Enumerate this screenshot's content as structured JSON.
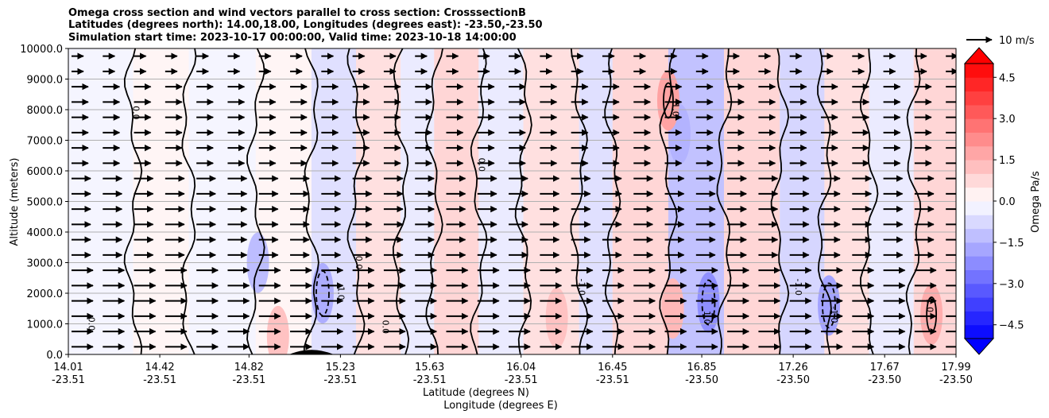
{
  "chart_data": {
    "type": "heatmap",
    "title_lines": [
      "Omega cross section and wind vectors parallel to cross section: CrosssectionB",
      "Latitudes (degrees north): 14.00,18.00, Longitudes (degrees east): -23.50,-23.50",
      "Simulation start time: 2023-10-17 00:00:00, Valid time: 2023-10-18 14:00:00"
    ],
    "ylabel": "Altitude (meters)",
    "xlabel_lines": [
      "Latitude (degrees N)",
      "Longitude (degrees E)"
    ],
    "y_ticks": [
      "0.0",
      "1000.0",
      "2000.0",
      "3000.0",
      "4000.0",
      "5000.0",
      "6000.0",
      "7000.0",
      "8000.0",
      "9000.0",
      "10000.0"
    ],
    "ylim": [
      0,
      10000
    ],
    "grid": "horizontal",
    "x_ticks": [
      {
        "lat": "14.01",
        "lon": "-23.51"
      },
      {
        "lat": "14.42",
        "lon": "-23.51"
      },
      {
        "lat": "14.82",
        "lon": "-23.51"
      },
      {
        "lat": "15.23",
        "lon": "-23.51"
      },
      {
        "lat": "15.63",
        "lon": "-23.51"
      },
      {
        "lat": "16.04",
        "lon": "-23.51"
      },
      {
        "lat": "16.45",
        "lon": "-23.51"
      },
      {
        "lat": "16.85",
        "lon": "-23.50"
      },
      {
        "lat": "17.26",
        "lon": "-23.50"
      },
      {
        "lat": "17.67",
        "lon": "-23.50"
      },
      {
        "lat": "17.99",
        "lon": "-23.50"
      }
    ],
    "xlim": [
      14.01,
      17.99
    ],
    "colorbar": {
      "label": "Omega Pa/s",
      "ticks": [
        "4.5",
        "3.0",
        "1.5",
        "0.0",
        "−1.5",
        "−3.0",
        "−4.5"
      ],
      "range": [
        -5,
        5
      ],
      "cmap": "bwr"
    },
    "quiver_key": {
      "label": "10 m/s",
      "speed": 10
    },
    "contour_labels": [
      "0.0",
      "1.0",
      "-1.0"
    ],
    "omega_bands": [
      {
        "lat_from": 14.01,
        "lat_to": 14.3,
        "value": -0.2
      },
      {
        "lat_from": 14.3,
        "lat_to": 14.55,
        "value": 0.2
      },
      {
        "lat_from": 14.55,
        "lat_to": 14.85,
        "value": -0.2
      },
      {
        "lat_from": 14.85,
        "lat_to": 15.1,
        "value": 0.2
      },
      {
        "lat_from": 15.1,
        "lat_to": 15.3,
        "value": -0.6
      },
      {
        "lat_from": 15.3,
        "lat_to": 15.5,
        "value": 0.6
      },
      {
        "lat_from": 15.5,
        "lat_to": 15.65,
        "value": -0.4
      },
      {
        "lat_from": 15.65,
        "lat_to": 15.85,
        "value": 0.8
      },
      {
        "lat_from": 15.85,
        "lat_to": 16.05,
        "value": -0.4
      },
      {
        "lat_from": 16.05,
        "lat_to": 16.3,
        "value": 0.6
      },
      {
        "lat_from": 16.3,
        "lat_to": 16.45,
        "value": -0.6
      },
      {
        "lat_from": 16.45,
        "lat_to": 16.7,
        "value": 0.8
      },
      {
        "lat_from": 16.7,
        "lat_to": 16.95,
        "value": -1.2
      },
      {
        "lat_from": 16.95,
        "lat_to": 17.2,
        "value": 0.8
      },
      {
        "lat_from": 17.2,
        "lat_to": 17.4,
        "value": -0.8
      },
      {
        "lat_from": 17.4,
        "lat_to": 17.6,
        "value": 0.6
      },
      {
        "lat_from": 17.6,
        "lat_to": 17.8,
        "value": -0.4
      },
      {
        "lat_from": 17.8,
        "lat_to": 17.99,
        "value": 0.8
      }
    ],
    "omega_blobs": [
      {
        "lat": 16.88,
        "alt": 1700,
        "value": -2.2
      },
      {
        "lat": 17.42,
        "alt": 1600,
        "value": -1.8
      },
      {
        "lat": 15.15,
        "alt": 2000,
        "value": -1.6
      },
      {
        "lat": 14.86,
        "alt": 3000,
        "value": -1.3
      },
      {
        "lat": 16.75,
        "alt": 7200,
        "value": -1.5
      },
      {
        "lat": 16.72,
        "alt": 1500,
        "value": 1.4
      },
      {
        "lat": 16.7,
        "alt": 8300,
        "value": 1.8
      },
      {
        "lat": 17.88,
        "alt": 1300,
        "value": 1.6
      },
      {
        "lat": 14.95,
        "alt": 600,
        "value": 1.2
      },
      {
        "lat": 16.2,
        "alt": 1200,
        "value": 1.2
      }
    ],
    "wind_vectors": [
      {
        "alt_from": 0,
        "alt_to": 3000,
        "u": 9
      },
      {
        "alt_from": 3000,
        "alt_to": 6000,
        "u": 8
      },
      {
        "alt_from": 6000,
        "alt_to": 9000,
        "u": 7
      },
      {
        "alt_from": 9000,
        "alt_to": 10000,
        "u": 5
      }
    ]
  },
  "colors": {
    "positive": "#ff0000",
    "negative": "#0000ff",
    "grid": "#b0b0b0",
    "contour": "#000000"
  }
}
